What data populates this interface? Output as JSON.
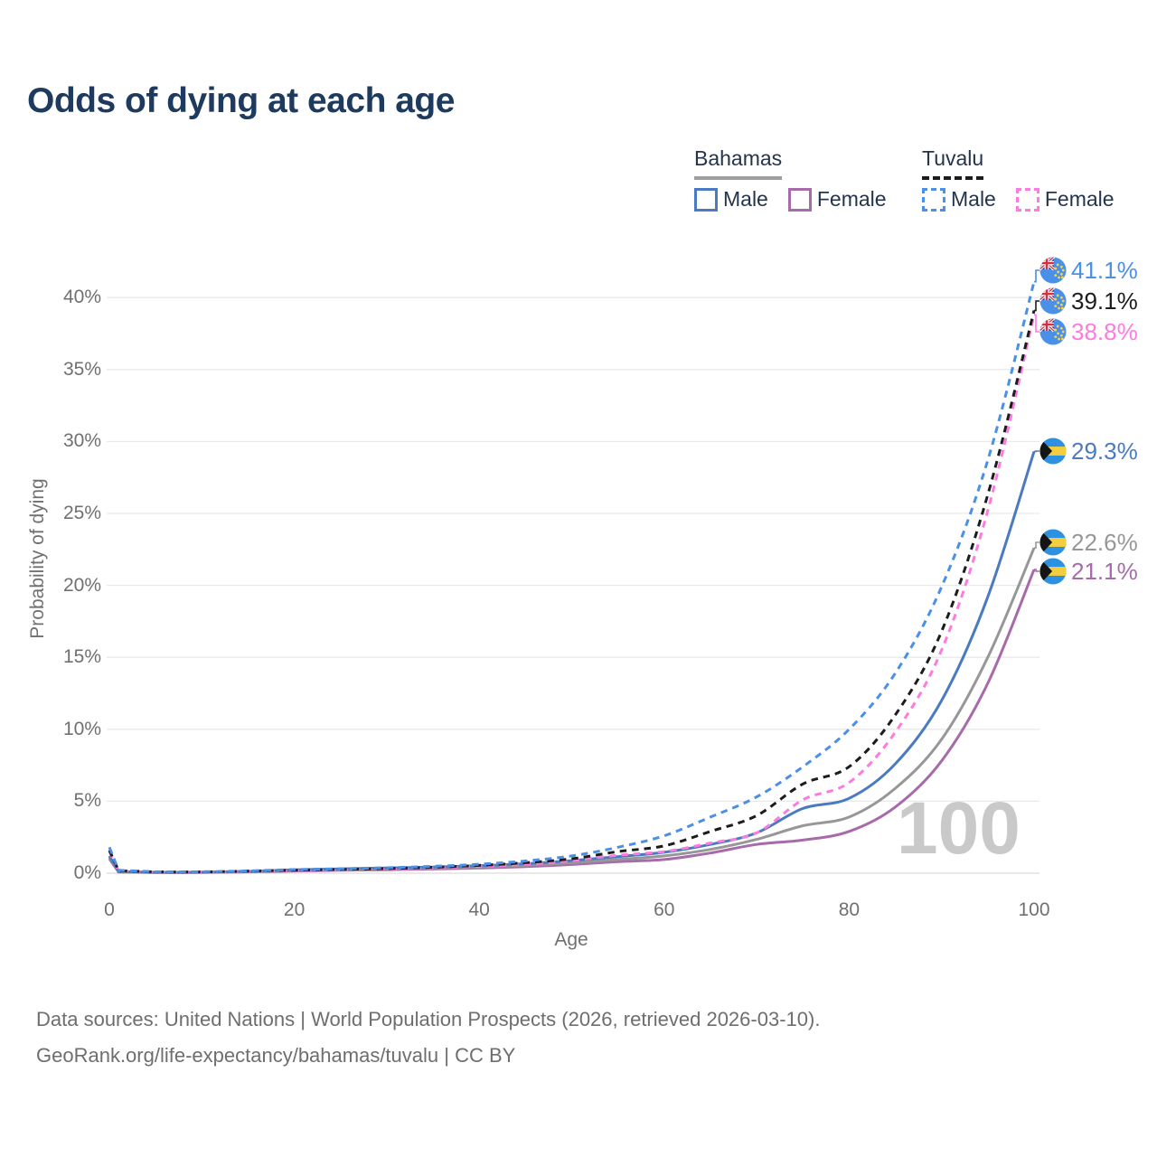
{
  "title": "Odds of dying at each age",
  "legend": {
    "groups": [
      {
        "title": "Bahamas",
        "line_style": "solid",
        "underline_color": "#9e9e9e",
        "items": [
          {
            "label": "Male",
            "color": "#4a7ac0"
          },
          {
            "label": "Female",
            "color": "#a76aaa"
          }
        ]
      },
      {
        "title": "Tuvalu",
        "line_style": "dashed",
        "underline_color": "#1c1c1c",
        "items": [
          {
            "label": "Male",
            "color": "#4a8fe8"
          },
          {
            "label": "Female",
            "color": "#ff7ae0"
          }
        ]
      }
    ]
  },
  "chart_data": {
    "type": "line",
    "title": "Odds of dying at each age",
    "xlabel": "Age",
    "ylabel": "Probability of dying",
    "xlim": [
      0,
      100
    ],
    "ylim_percent": [
      0,
      42
    ],
    "grid": "horizontal",
    "x_tick_labels": [
      "0",
      "20",
      "40",
      "60",
      "80",
      "100"
    ],
    "x_tick_values": [
      0,
      20,
      40,
      60,
      80,
      100
    ],
    "y_tick_labels": [
      "0%",
      "5%",
      "10%",
      "15%",
      "20%",
      "25%",
      "30%",
      "35%",
      "40%"
    ],
    "y_tick_values": [
      0,
      5,
      10,
      15,
      20,
      25,
      30,
      35,
      40
    ],
    "watermark": "100",
    "x": [
      0,
      1,
      5,
      10,
      15,
      20,
      25,
      30,
      35,
      40,
      45,
      50,
      55,
      60,
      65,
      70,
      75,
      80,
      85,
      90,
      95,
      100
    ],
    "series": [
      {
        "name": "Tuvalu Male",
        "flag": "tuvalu",
        "style": "dashed",
        "color": "#4a8fe8",
        "end_label": "41.1%",
        "values": [
          1.8,
          0.2,
          0.1,
          0.1,
          0.16,
          0.25,
          0.31,
          0.38,
          0.48,
          0.62,
          0.85,
          1.2,
          1.8,
          2.6,
          3.9,
          5.3,
          7.4,
          10.0,
          13.9,
          19.9,
          28.7,
          41.1
        ]
      },
      {
        "name": "Tuvalu",
        "flag": "tuvalu",
        "style": "dashed",
        "color": "#1c1c1c",
        "end_label": "39.1%",
        "values": [
          1.6,
          0.17,
          0.09,
          0.09,
          0.14,
          0.21,
          0.26,
          0.32,
          0.41,
          0.54,
          0.73,
          1.0,
          1.5,
          1.9,
          2.9,
          4.0,
          6.2,
          7.4,
          11.0,
          16.8,
          26.3,
          39.1
        ]
      },
      {
        "name": "Tuvalu Female",
        "flag": "tuvalu",
        "style": "dashed",
        "color": "#ff7ae0",
        "end_label": "38.8%",
        "values": [
          1.5,
          0.15,
          0.08,
          0.08,
          0.12,
          0.18,
          0.22,
          0.28,
          0.36,
          0.47,
          0.62,
          0.87,
          1.25,
          1.5,
          2.1,
          2.8,
          5.1,
          6.3,
          9.8,
          15.5,
          25.2,
          38.8
        ]
      },
      {
        "name": "Bahamas Male",
        "flag": "bahamas",
        "style": "solid",
        "color": "#4a7ac0",
        "end_label": "29.3%",
        "values": [
          1.2,
          0.1,
          0.06,
          0.07,
          0.13,
          0.23,
          0.3,
          0.36,
          0.43,
          0.52,
          0.66,
          0.87,
          1.15,
          1.45,
          2.0,
          2.8,
          4.5,
          5.2,
          7.6,
          12.0,
          19.2,
          29.3
        ]
      },
      {
        "name": "Bahamas",
        "flag": "bahamas",
        "style": "solid",
        "color": "#979797",
        "end_label": "22.6%",
        "values": [
          1.1,
          0.09,
          0.05,
          0.06,
          0.11,
          0.19,
          0.25,
          0.3,
          0.36,
          0.44,
          0.55,
          0.72,
          0.95,
          1.2,
          1.65,
          2.35,
          3.3,
          3.9,
          5.9,
          9.3,
          15.0,
          22.6
        ]
      },
      {
        "name": "Bahamas Female",
        "flag": "bahamas",
        "style": "solid",
        "color": "#a76aaa",
        "end_label": "21.1%",
        "values": [
          1.0,
          0.08,
          0.05,
          0.05,
          0.09,
          0.15,
          0.2,
          0.24,
          0.29,
          0.36,
          0.45,
          0.6,
          0.8,
          0.95,
          1.4,
          2.0,
          2.3,
          2.9,
          4.6,
          7.8,
          13.2,
          21.1
        ]
      }
    ]
  },
  "footer": {
    "line1": "Data sources: United Nations | World Population Prospects (2026, retrieved 2026-03-10).",
    "line2": "GeoRank.org/life-expectancy/bahamas/tuvalu | CC BY"
  }
}
